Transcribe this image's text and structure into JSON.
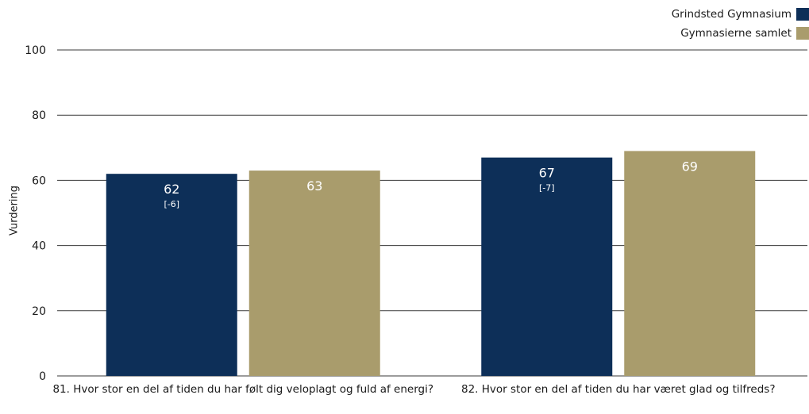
{
  "chart_data": {
    "type": "bar",
    "title": "",
    "ylabel": "Vurdering",
    "xlabel": "",
    "ylim": [
      0,
      100
    ],
    "yticks": [
      0,
      20,
      40,
      60,
      80,
      100
    ],
    "grid": true,
    "legend_position": "top-right",
    "categories": [
      "81. Hvor stor en del af tiden du har følt dig veloplagt og fuld af energi?",
      "82. Hvor stor en del af tiden du har været glad og tilfreds?"
    ],
    "series": [
      {
        "name": "Grindsted Gymnasium",
        "color": "#0d2f58",
        "values": [
          62,
          67
        ],
        "labels": [
          "62",
          "67"
        ],
        "sublabels": [
          "[-6]",
          "[-7]"
        ]
      },
      {
        "name": "Gymnasierne samlet",
        "color": "#a99c6c",
        "values": [
          63,
          69
        ],
        "labels": [
          "63",
          "69"
        ],
        "sublabels": [
          "",
          ""
        ]
      }
    ]
  }
}
